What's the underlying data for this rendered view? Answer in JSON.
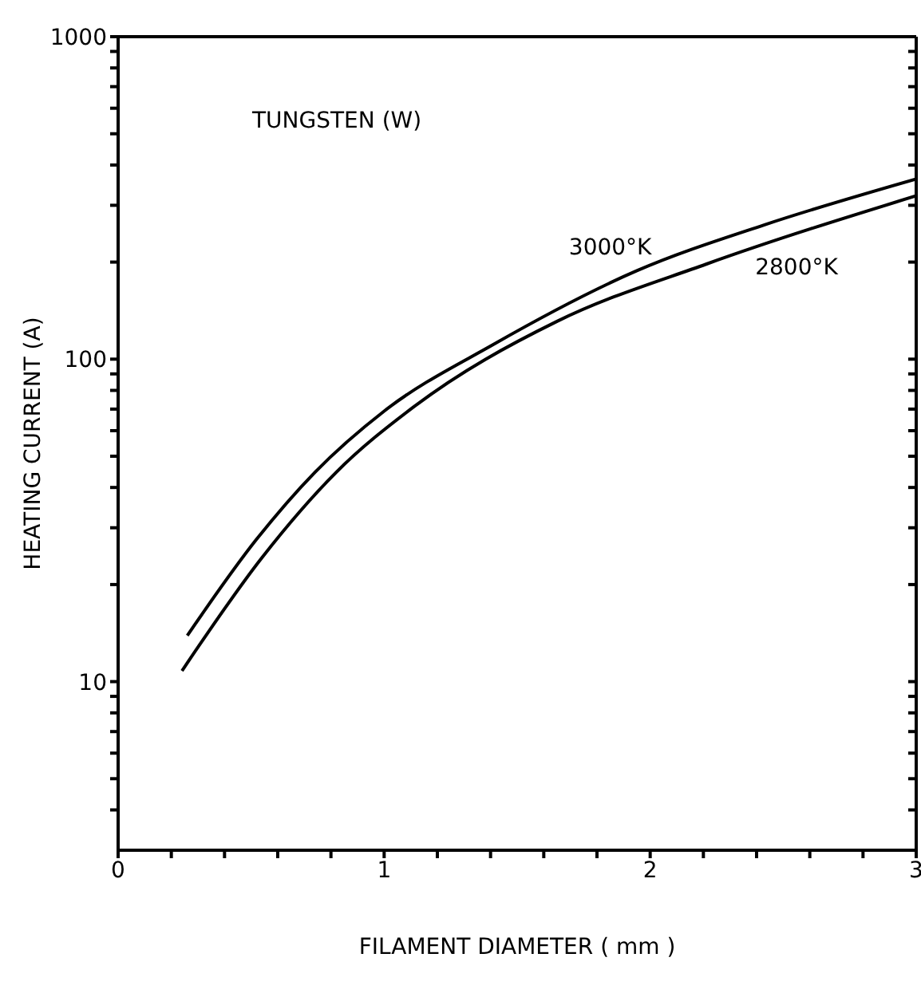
{
  "chart_data": {
    "type": "line",
    "xlabel": "FILAMENT DIAMETER ( mm )",
    "ylabel": "HEATING CURRENT (A)",
    "log": "y",
    "marker": "none",
    "line_style": "solid",
    "xlim": [
      0,
      3
    ],
    "ylim": [
      3,
      1000
    ],
    "xticks": [
      0,
      {
        "value": 0.2,
        "label": null
      },
      {
        "value": 0.4,
        "label": null
      },
      {
        "value": 0.6,
        "label": null
      },
      {
        "value": 0.8,
        "label": null
      },
      1,
      {
        "value": 1.2,
        "label": null
      },
      {
        "value": 1.4,
        "label": null
      },
      {
        "value": 1.6,
        "label": null
      },
      {
        "value": 1.8,
        "label": null
      },
      2,
      {
        "value": 2.2,
        "label": null
      },
      {
        "value": 2.4,
        "label": null
      },
      {
        "value": 2.6,
        "label": null
      },
      {
        "value": 2.8,
        "label": null
      },
      3
    ],
    "yticks": [
      {
        "value": 4,
        "label": null
      },
      {
        "value": 5,
        "label": null
      },
      {
        "value": 6,
        "label": null
      },
      {
        "value": 7,
        "label": null
      },
      {
        "value": 8,
        "label": null
      },
      {
        "value": 9,
        "label": null
      },
      10,
      {
        "value": 20,
        "label": null
      },
      {
        "value": 30,
        "label": null
      },
      {
        "value": 40,
        "label": null
      },
      {
        "value": 50,
        "label": null
      },
      {
        "value": 60,
        "label": null
      },
      {
        "value": 70,
        "label": null
      },
      {
        "value": 80,
        "label": null
      },
      {
        "value": 90,
        "label": null
      },
      100,
      {
        "value": 200,
        "label": null
      },
      {
        "value": 300,
        "label": null
      },
      {
        "value": 400,
        "label": null
      },
      {
        "value": 500,
        "label": null
      },
      {
        "value": 600,
        "label": null
      },
      {
        "value": 700,
        "label": null
      },
      {
        "value": 800,
        "label": null
      },
      {
        "value": 900,
        "label": null
      },
      1000
    ],
    "series": [
      {
        "color": "#000000",
        "x": [
          0.26,
          0.52,
          0.74,
          1.0,
          1.41,
          1.95,
          2.43,
          3.0
        ],
        "values": [
          13.9,
          27.6,
          44.6,
          69,
          111,
          188,
          261,
          362
        ]
      },
      {
        "color": "#000000",
        "x": [
          0.24,
          0.54,
          0.82,
          1.11,
          1.65,
          2.21,
          3.0
        ],
        "values": [
          10.8,
          24.2,
          44.6,
          71,
          131,
          197,
          321
        ]
      }
    ],
    "annotations": [
      "TUNGSTEN (W)",
      {
        "text": "3000°K",
        "x": 1.85,
        "y": 180
      },
      {
        "text": "2800°K",
        "x": 2.55,
        "y": 240
      }
    ]
  }
}
